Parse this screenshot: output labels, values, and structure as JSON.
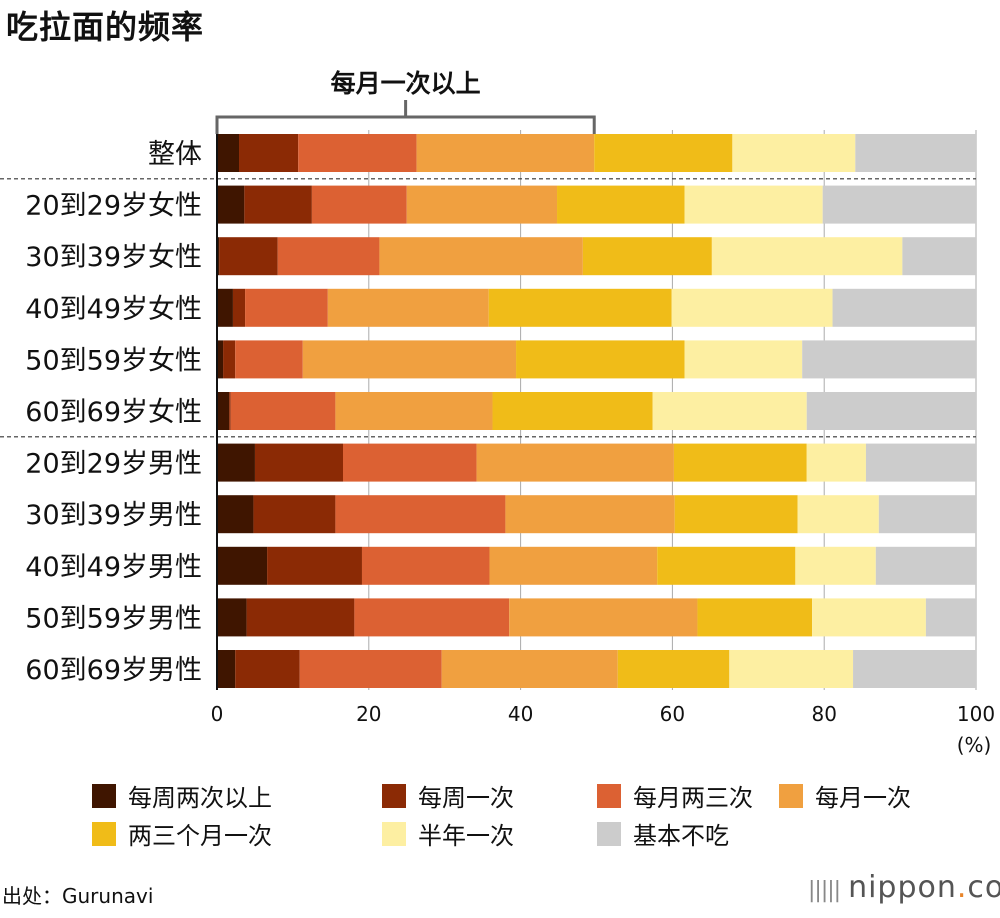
{
  "chart_data": {
    "type": "bar",
    "orientation": "horizontal",
    "stacked": true,
    "title": "吃拉面的频率",
    "unit_label": "(%)",
    "xlim": [
      0,
      100
    ],
    "x_ticks": [
      0,
      20,
      40,
      60,
      80,
      100
    ],
    "grid": true,
    "legend_position": "bottom",
    "annotation": {
      "label": "每月一次以上",
      "from": 0,
      "to": 49.7
    },
    "categories": [
      "整体",
      "20到29岁女性",
      "30到39岁女性",
      "40到49岁女性",
      "50到59岁女性",
      "60到69岁女性",
      "20到29岁男性",
      "30到39岁男性",
      "40到49岁男性",
      "50到59岁男性",
      "60到69岁男性"
    ],
    "group_separators_after": [
      0,
      5
    ],
    "series": [
      {
        "name": "每周两次以上",
        "color": "#3f1500",
        "values": [
          2.9,
          3.6,
          0.3,
          2.1,
          0.8,
          1.6,
          5.0,
          4.8,
          6.6,
          3.9,
          2.4
        ]
      },
      {
        "name": "每周一次",
        "color": "#8b2a05",
        "values": [
          7.8,
          8.9,
          7.7,
          1.6,
          1.6,
          0.2,
          11.6,
          10.8,
          12.5,
          14.2,
          8.5
        ]
      },
      {
        "name": "每月两三次",
        "color": "#dc6133",
        "values": [
          15.6,
          12.5,
          13.4,
          10.9,
          8.9,
          13.8,
          17.6,
          22.4,
          16.8,
          20.4,
          18.7
        ]
      },
      {
        "name": "每月一次",
        "color": "#f0a040",
        "values": [
          23.4,
          19.8,
          26.8,
          21.2,
          28.1,
          20.7,
          26.0,
          22.3,
          22.1,
          24.8,
          23.2
        ]
      },
      {
        "name": "两三个月一次",
        "color": "#f0bc18",
        "values": [
          18.2,
          16.8,
          17.0,
          24.1,
          22.2,
          21.1,
          17.5,
          16.2,
          18.2,
          15.1,
          14.7
        ]
      },
      {
        "name": "半年一次",
        "color": "#fdefa2",
        "values": [
          16.2,
          18.2,
          25.1,
          21.2,
          15.5,
          20.3,
          7.8,
          10.7,
          10.6,
          15.0,
          16.3
        ]
      },
      {
        "name": "基本不吃",
        "color": "#cccccc",
        "values": [
          15.9,
          20.2,
          9.7,
          18.9,
          22.9,
          22.3,
          14.5,
          12.8,
          13.2,
          6.6,
          16.2
        ]
      }
    ]
  },
  "footer": {
    "source": "出处：Gurunavi",
    "brand_name": "nippon",
    "brand_dot": ".",
    "brand_tld": "com",
    "brand_mark": "|||||"
  }
}
